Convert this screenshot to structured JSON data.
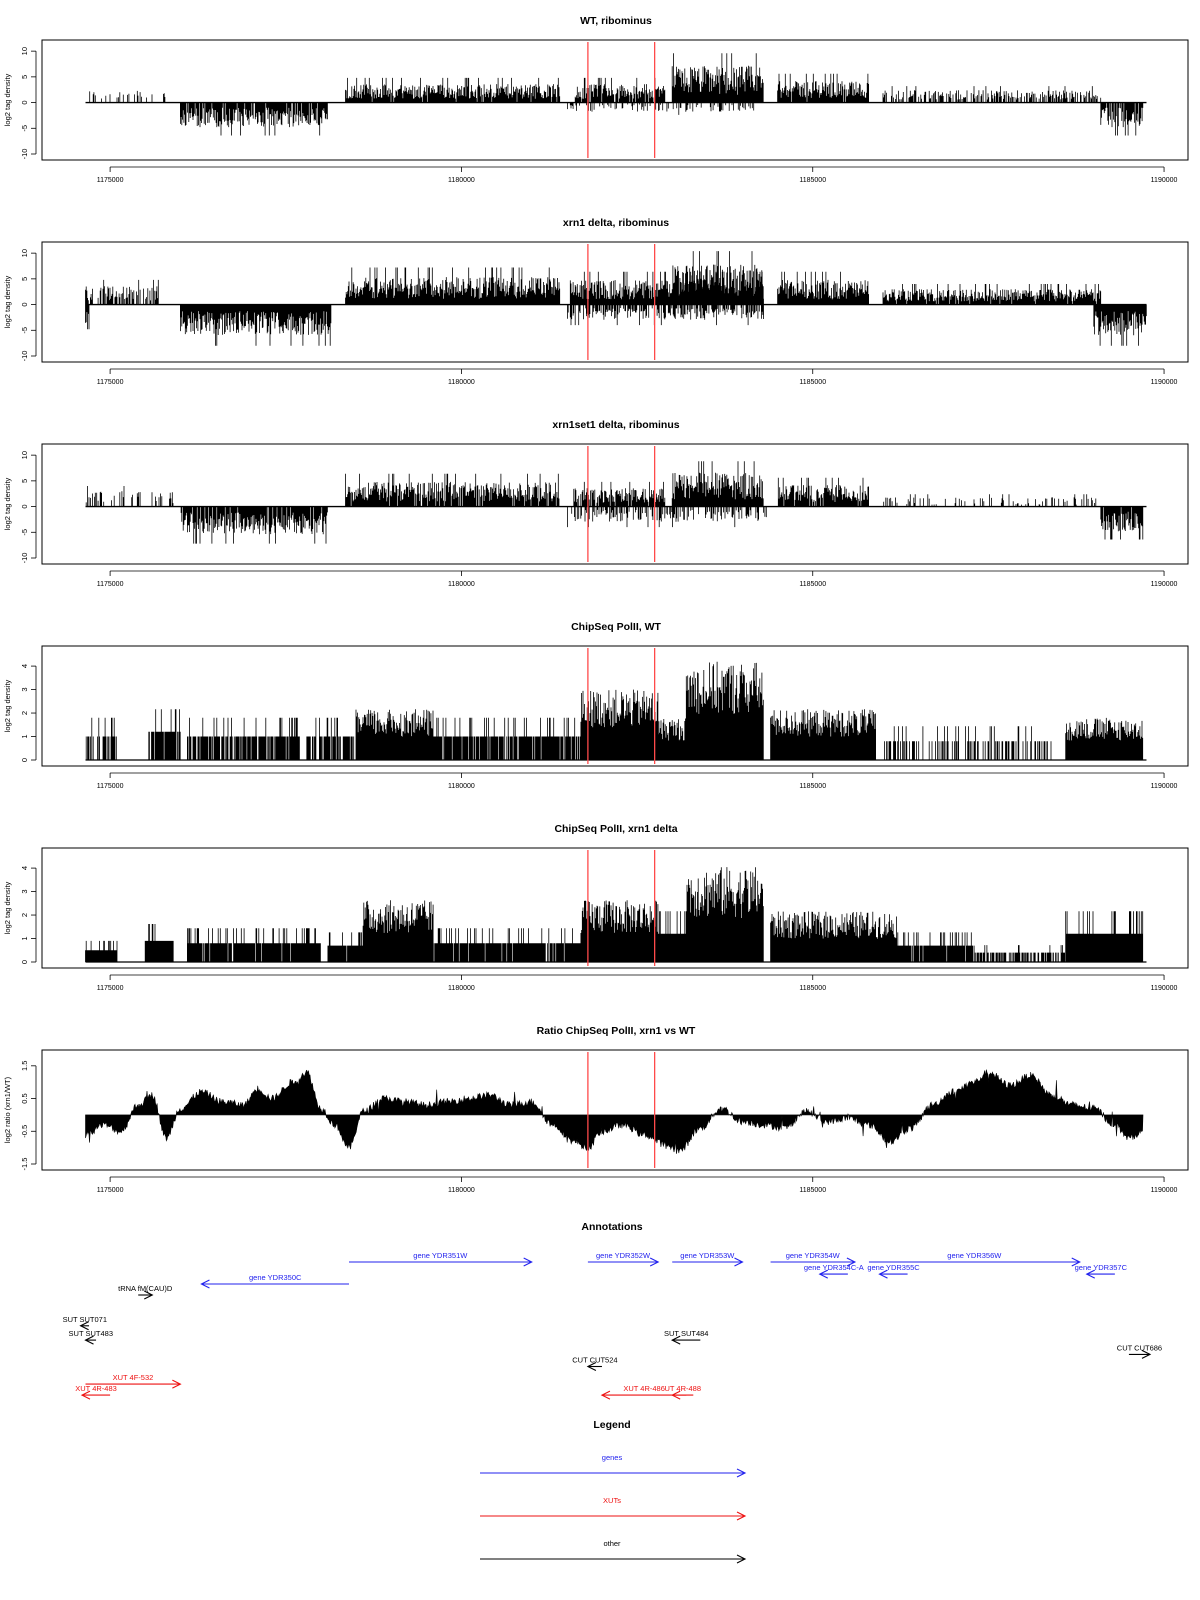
{
  "figure": {
    "x_ticks": [
      "1175000",
      "1180000",
      "1185000",
      "1190000"
    ],
    "x_tick_values": [
      1175000,
      1180000,
      1185000,
      1190000
    ],
    "x_range": [
      1174600,
      1189800
    ],
    "marker_positions": [
      1181800,
      1182750
    ],
    "marker_color": "#ff4a4a",
    "colors": {
      "genes": "#2222ee",
      "xuts": "#ee1111",
      "other": "#000000",
      "bars": "#000000"
    }
  },
  "chart_data": [
    {
      "type": "bar",
      "title": "WT, ribominus",
      "ylabel": "log2 tag density",
      "ylim": [
        -10,
        11
      ],
      "y_ticks": [
        "-10",
        "-5",
        "0",
        "5",
        "10"
      ],
      "y_tick_values": [
        -10,
        -5,
        0,
        5,
        10
      ],
      "mirrored": true,
      "segments": [
        {
          "from": 1174650,
          "to": 1175600,
          "strand": "+",
          "level": 2,
          "density": 0.25
        },
        {
          "from": 1175750,
          "to": 1175800,
          "strand": "+",
          "level": 3,
          "density": 0.5
        },
        {
          "from": 1176000,
          "to": 1178100,
          "strand": "-",
          "level": -4,
          "density": 0.9
        },
        {
          "from": 1178350,
          "to": 1181400,
          "strand": "+",
          "level": 3,
          "density": 0.95
        },
        {
          "from": 1181600,
          "to": 1182900,
          "strand": "+",
          "level": 3,
          "density": 0.9
        },
        {
          "from": 1181500,
          "to": 1184200,
          "strand": "-",
          "level": -1.5,
          "density": 0.3
        },
        {
          "from": 1183000,
          "to": 1184300,
          "strand": "+",
          "level": 6,
          "density": 1
        },
        {
          "from": 1184500,
          "to": 1185800,
          "strand": "+",
          "level": 3.5,
          "density": 0.95
        },
        {
          "from": 1186000,
          "to": 1189100,
          "strand": "+",
          "level": 2,
          "density": 0.55
        },
        {
          "from": 1189100,
          "to": 1189700,
          "strand": "-",
          "level": -4,
          "density": 0.9
        }
      ]
    },
    {
      "type": "bar",
      "title": "xrn1 delta, ribominus",
      "ylabel": "log2 tag density",
      "ylim": [
        -10,
        11
      ],
      "y_ticks": [
        "-10",
        "-5",
        "0",
        "5",
        "10"
      ],
      "y_tick_values": [
        -10,
        -5,
        0,
        5,
        10
      ],
      "mirrored": true,
      "segments": [
        {
          "from": 1174650,
          "to": 1175700,
          "strand": "+",
          "level": 3,
          "density": 0.6
        },
        {
          "from": 1174650,
          "to": 1174700,
          "strand": "-",
          "level": -3,
          "density": 1
        },
        {
          "from": 1176000,
          "to": 1178150,
          "strand": "-",
          "level": -5,
          "density": 1
        },
        {
          "from": 1178350,
          "to": 1181400,
          "strand": "+",
          "level": 4.5,
          "density": 1
        },
        {
          "from": 1181550,
          "to": 1184300,
          "strand": "+",
          "level": 4,
          "density": 1
        },
        {
          "from": 1181500,
          "to": 1184300,
          "strand": "-",
          "level": -2.5,
          "density": 0.6
        },
        {
          "from": 1183000,
          "to": 1184300,
          "strand": "+",
          "level": 6.5,
          "density": 1
        },
        {
          "from": 1184500,
          "to": 1185800,
          "strand": "+",
          "level": 4,
          "density": 1
        },
        {
          "from": 1186000,
          "to": 1189100,
          "strand": "+",
          "level": 2.5,
          "density": 0.95
        },
        {
          "from": 1189000,
          "to": 1189750,
          "strand": "-",
          "level": -5,
          "density": 1
        }
      ]
    },
    {
      "type": "bar",
      "title": "xrn1set1 delta, ribominus",
      "ylabel": "log2 tag density",
      "ylim": [
        -10,
        11
      ],
      "y_ticks": [
        "-10",
        "-5",
        "0",
        "5",
        "10"
      ],
      "y_tick_values": [
        -10,
        -5,
        0,
        5,
        10
      ],
      "mirrored": true,
      "segments": [
        {
          "from": 1174650,
          "to": 1175900,
          "strand": "+",
          "level": 2.5,
          "density": 0.3
        },
        {
          "from": 1176000,
          "to": 1178100,
          "strand": "-",
          "level": -4.5,
          "density": 0.9
        },
        {
          "from": 1178350,
          "to": 1181400,
          "strand": "+",
          "level": 4,
          "density": 0.9
        },
        {
          "from": 1181600,
          "to": 1182900,
          "strand": "+",
          "level": 3,
          "density": 0.85
        },
        {
          "from": 1181500,
          "to": 1184400,
          "strand": "-",
          "level": -2.5,
          "density": 0.4
        },
        {
          "from": 1183000,
          "to": 1184300,
          "strand": "+",
          "level": 5.5,
          "density": 1
        },
        {
          "from": 1184500,
          "to": 1185800,
          "strand": "+",
          "level": 3.5,
          "density": 0.9
        },
        {
          "from": 1186000,
          "to": 1189100,
          "strand": "+",
          "level": 1.5,
          "density": 0.25
        },
        {
          "from": 1189100,
          "to": 1189700,
          "strand": "-",
          "level": -4,
          "density": 0.9
        }
      ]
    },
    {
      "type": "bar",
      "title": "ChipSeq PolII, WT",
      "ylabel": "log2 tag density",
      "ylim": [
        0,
        4.6
      ],
      "y_ticks": [
        "0",
        "1",
        "2",
        "3",
        "4"
      ],
      "y_tick_values": [
        0,
        1,
        2,
        3,
        4
      ],
      "mirrored": false,
      "segments": [
        {
          "from": 1174650,
          "to": 1175100,
          "strand": "+",
          "level": 1,
          "density": 0.5
        },
        {
          "from": 1175550,
          "to": 1176000,
          "strand": "+",
          "level": 1.2,
          "density": 0.9
        },
        {
          "from": 1176100,
          "to": 1177700,
          "strand": "+",
          "level": 1,
          "density": 0.8
        },
        {
          "from": 1177800,
          "to": 1178500,
          "strand": "+",
          "level": 1,
          "density": 0.8
        },
        {
          "from": 1178500,
          "to": 1179600,
          "strand": "+",
          "level": 1.8,
          "density": 1
        },
        {
          "from": 1179600,
          "to": 1181700,
          "strand": "+",
          "level": 1,
          "density": 0.85
        },
        {
          "from": 1181700,
          "to": 1182800,
          "strand": "+",
          "level": 2.5,
          "density": 1
        },
        {
          "from": 1182800,
          "to": 1183200,
          "strand": "+",
          "level": 1.5,
          "density": 1
        },
        {
          "from": 1183200,
          "to": 1184300,
          "strand": "+",
          "level": 3.5,
          "density": 1
        },
        {
          "from": 1184400,
          "to": 1185900,
          "strand": "+",
          "level": 1.8,
          "density": 1
        },
        {
          "from": 1186000,
          "to": 1188400,
          "strand": "+",
          "level": 0.8,
          "density": 0.35
        },
        {
          "from": 1188600,
          "to": 1189700,
          "strand": "+",
          "level": 1.5,
          "density": 1
        }
      ]
    },
    {
      "type": "bar",
      "title": "ChipSeq PolII, xrn1 delta",
      "ylabel": "log2 tag density",
      "ylim": [
        0,
        4.6
      ],
      "y_ticks": [
        "0",
        "1",
        "2",
        "3",
        "4"
      ],
      "y_tick_values": [
        0,
        1,
        2,
        3,
        4
      ],
      "mirrored": false,
      "segments": [
        {
          "from": 1174650,
          "to": 1175100,
          "strand": "+",
          "level": 0.5,
          "density": 1
        },
        {
          "from": 1175500,
          "to": 1175900,
          "strand": "+",
          "level": 0.9,
          "density": 1
        },
        {
          "from": 1176100,
          "to": 1178000,
          "strand": "+",
          "level": 0.8,
          "density": 0.95
        },
        {
          "from": 1178100,
          "to": 1178600,
          "strand": "+",
          "level": 0.7,
          "density": 0.95
        },
        {
          "from": 1178600,
          "to": 1179600,
          "strand": "+",
          "level": 2.2,
          "density": 1
        },
        {
          "from": 1179600,
          "to": 1181700,
          "strand": "+",
          "level": 0.8,
          "density": 0.95
        },
        {
          "from": 1181700,
          "to": 1182800,
          "strand": "+",
          "level": 2.2,
          "density": 1
        },
        {
          "from": 1182800,
          "to": 1183200,
          "strand": "+",
          "level": 1.2,
          "density": 1
        },
        {
          "from": 1183200,
          "to": 1184300,
          "strand": "+",
          "level": 3.4,
          "density": 1
        },
        {
          "from": 1184400,
          "to": 1186200,
          "strand": "+",
          "level": 1.8,
          "density": 1
        },
        {
          "from": 1186200,
          "to": 1187300,
          "strand": "+",
          "level": 0.7,
          "density": 0.9
        },
        {
          "from": 1187300,
          "to": 1188600,
          "strand": "+",
          "level": 0.4,
          "density": 0.6
        },
        {
          "from": 1188600,
          "to": 1189700,
          "strand": "+",
          "level": 1.2,
          "density": 1
        }
      ]
    },
    {
      "type": "area",
      "title": "Ratio ChipSeq PolII, xrn1 vs WT",
      "ylabel": "log2 ratio (xrn1/WT)",
      "ylim": [
        -1.5,
        1.8
      ],
      "y_ticks": [
        "-1.5",
        "-0.5",
        "0.5",
        "1.5"
      ],
      "y_tick_values": [
        -1.5,
        -0.5,
        0.5,
        1.5
      ],
      "x": [
        1174650,
        1174900,
        1175150,
        1175400,
        1175600,
        1175800,
        1176000,
        1176300,
        1176600,
        1176900,
        1177100,
        1177300,
        1177600,
        1177800,
        1178000,
        1178200,
        1178400,
        1178600,
        1178900,
        1179200,
        1179500,
        1179800,
        1180100,
        1180400,
        1180700,
        1181000,
        1181300,
        1181600,
        1181800,
        1182000,
        1182300,
        1182600,
        1182900,
        1183100,
        1183400,
        1183700,
        1184000,
        1184300,
        1184600,
        1184900,
        1185200,
        1185500,
        1185800,
        1186100,
        1186400,
        1186700,
        1187000,
        1187300,
        1187500,
        1187800,
        1188100,
        1188400,
        1188700,
        1189000,
        1189300,
        1189500,
        1189700
      ],
      "y": [
        -0.6,
        -0.3,
        -0.5,
        0.3,
        0.6,
        -0.7,
        0.2,
        0.7,
        0.4,
        0.3,
        0.8,
        0.5,
        1.0,
        1.3,
        0.2,
        -0.3,
        -1.0,
        0.1,
        0.5,
        0.4,
        0.3,
        0.4,
        0.5,
        0.6,
        0.3,
        0.4,
        -0.3,
        -0.8,
        -1.0,
        -0.5,
        -0.3,
        -0.6,
        -0.9,
        -1.1,
        -0.4,
        0.2,
        -0.2,
        -0.3,
        -0.4,
        0.1,
        -0.2,
        -0.1,
        -0.3,
        -0.8,
        -0.4,
        0.3,
        0.7,
        1.0,
        1.3,
        0.9,
        1.2,
        0.6,
        0.3,
        0.2,
        -0.3,
        -0.7,
        -0.5
      ]
    }
  ],
  "annotations": {
    "title": "Annotations",
    "features": [
      {
        "label": "gene YDR350C",
        "type": "genes",
        "x1": 1176300,
        "x2": 1178400,
        "dir": "left",
        "row": 1
      },
      {
        "label": "gene YDR351W",
        "type": "genes",
        "x1": 1178400,
        "x2": 1181000,
        "dir": "right",
        "row": 0
      },
      {
        "label": "gene YDR352W",
        "type": "genes",
        "x1": 1181800,
        "x2": 1182800,
        "dir": "right",
        "row": 0
      },
      {
        "label": "gene YDR353W",
        "type": "genes",
        "x1": 1183000,
        "x2": 1184000,
        "dir": "right",
        "row": 0
      },
      {
        "label": "gene YDR354W",
        "type": "genes",
        "x1": 1184400,
        "x2": 1185600,
        "dir": "right",
        "row": 0
      },
      {
        "label": "gene YDR354C-A",
        "type": "genes",
        "x1": 1185100,
        "x2": 1185500,
        "dir": "left",
        "row": 0.55
      },
      {
        "label": "gene YDR355C",
        "type": "genes",
        "x1": 1185950,
        "x2": 1186350,
        "dir": "left",
        "row": 0.55
      },
      {
        "label": "gene YDR356W",
        "type": "genes",
        "x1": 1185800,
        "x2": 1188800,
        "dir": "right",
        "row": 0
      },
      {
        "label": "gene YDR357C",
        "type": "genes",
        "x1": 1188900,
        "x2": 1189300,
        "dir": "left",
        "row": 0.55
      },
      {
        "label": "tRNA fM(CAU)D",
        "type": "other",
        "x1": 1175400,
        "x2": 1175600,
        "dir": "right",
        "row": 1.5
      },
      {
        "label": "SUT SUT071",
        "type": "other",
        "x1": 1174580,
        "x2": 1174700,
        "dir": "left",
        "row": 2.9
      },
      {
        "label": "SUT SUT483",
        "type": "other",
        "x1": 1174650,
        "x2": 1174800,
        "dir": "left",
        "row": 3.55
      },
      {
        "label": "SUT SUT484",
        "type": "other",
        "x1": 1183000,
        "x2": 1183400,
        "dir": "left",
        "row": 3.55
      },
      {
        "label": "CUT CUT524",
        "type": "other",
        "x1": 1181800,
        "x2": 1182000,
        "dir": "left",
        "row": 4.75
      },
      {
        "label": "CUT CUT686",
        "type": "other",
        "x1": 1189500,
        "x2": 1189800,
        "dir": "right",
        "row": 4.2
      },
      {
        "label": "XUT 4F-532",
        "type": "xuts",
        "x1": 1174650,
        "x2": 1176000,
        "dir": "right",
        "row": 5.55
      },
      {
        "label": "XUT 4R-483",
        "type": "xuts",
        "x1": 1174600,
        "x2": 1175000,
        "dir": "left",
        "row": 6.05
      },
      {
        "label": "XUT 4R-486",
        "type": "xuts",
        "x1": 1182000,
        "x2": 1183200,
        "dir": "left",
        "row": 6.05
      },
      {
        "label": "UT 4R-488",
        "type": "xuts",
        "x1": 1183000,
        "x2": 1183300,
        "dir": "left",
        "row": 6.05
      }
    ]
  },
  "legend": {
    "title": "Legend",
    "items": [
      {
        "label": "genes",
        "type": "genes"
      },
      {
        "label": "XUTs",
        "type": "xuts"
      },
      {
        "label": "other",
        "type": "other"
      }
    ]
  }
}
